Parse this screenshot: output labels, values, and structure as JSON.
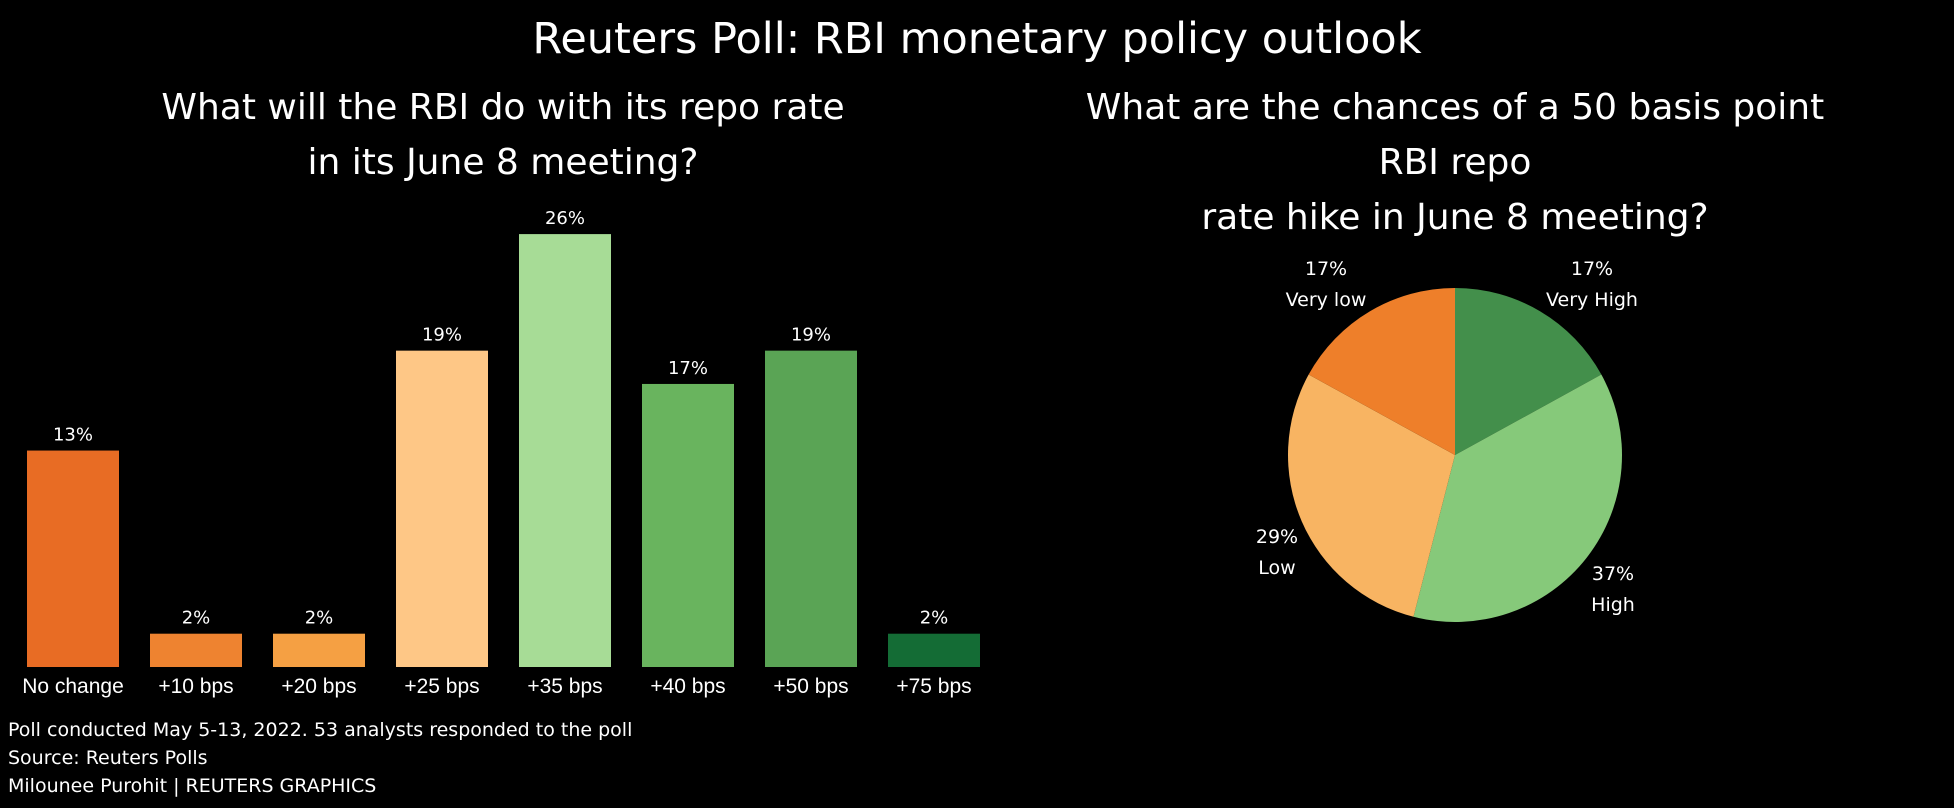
{
  "title": "Reuters Poll: RBI monetary policy outlook",
  "footer": {
    "note": "Poll conducted May 5-13, 2022. 53 analysts responded to the poll",
    "source": "Source: Reuters Polls",
    "credit": "Milounee Purohit | REUTERS GRAPHICS"
  },
  "chart_data": [
    {
      "type": "bar",
      "title_lines": [
        "What will the RBI do with its repo rate",
        "in its June 8 meeting?"
      ],
      "categories": [
        "No change",
        "+10 bps",
        "+20 bps",
        "+25 bps",
        "+35 bps",
        "+40 bps",
        "+50 bps",
        "+75 bps"
      ],
      "values": [
        13,
        2,
        2,
        19,
        26,
        17,
        19,
        2
      ],
      "data_labels": [
        "13%",
        "2%",
        "2%",
        "19%",
        "26%",
        "17%",
        "19%",
        "2%"
      ],
      "colors": [
        "#e86c24",
        "#ee8330",
        "#f5a043",
        "#fec786",
        "#a7dc96",
        "#69b45e",
        "#5aa455",
        "#146c35"
      ],
      "unit": "%",
      "grid": false
    },
    {
      "type": "pie",
      "title_lines": [
        "What are the chances of a 50 basis point RBI repo",
        "rate hike in June 8 meeting?"
      ],
      "slices": [
        {
          "label": "Very High",
          "value": 17,
          "value_label": "17%",
          "color": "#438f4b"
        },
        {
          "label": "High",
          "value": 37,
          "value_label": "37%",
          "color": "#86c97a"
        },
        {
          "label": "Low",
          "value": 29,
          "value_label": "29%",
          "color": "#f8b462"
        },
        {
          "label": "Very low",
          "value": 17,
          "value_label": "17%",
          "color": "#ee7f2a"
        }
      ]
    }
  ]
}
